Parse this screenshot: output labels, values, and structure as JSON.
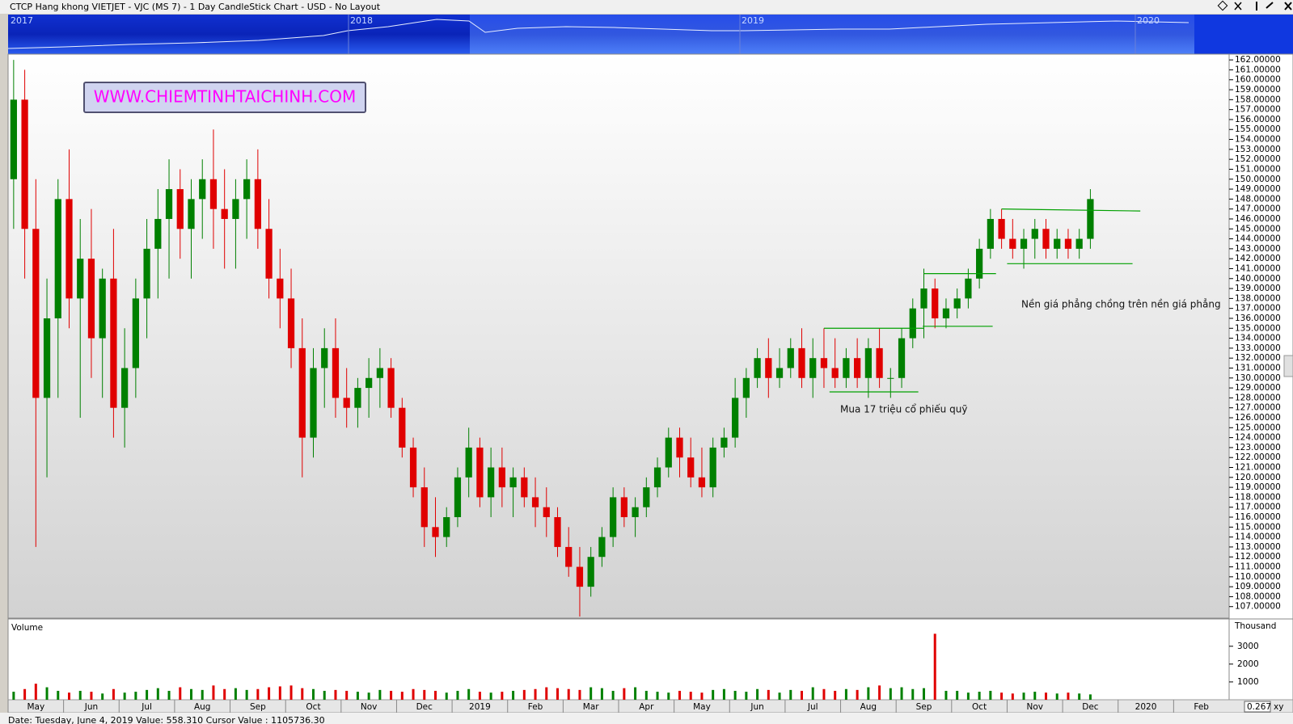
{
  "chart_data": {
    "type": "candlestick",
    "title": "CTCP Hang khong VIETJET - VJC (MS 7) - 1 Day CandleStick Chart - USD - No Layout",
    "navigator_labels": [
      "2017",
      "2018",
      "2019",
      "2020"
    ],
    "watermark": "WWW.CHIEMTINHTAICHINH.COM",
    "categories": [
      null,
      null,
      "May",
      null,
      null,
      null,
      null,
      "Jun",
      null,
      null,
      null,
      null,
      "Jul",
      null,
      null,
      null,
      null,
      "Aug",
      null,
      null,
      null,
      null,
      "Sep",
      null,
      null,
      null,
      null,
      "Oct",
      null,
      null,
      null,
      null,
      "Nov",
      null,
      null,
      null,
      null,
      "Dec",
      null,
      null,
      null,
      null,
      "2019",
      null,
      null,
      null,
      null,
      "Feb",
      null,
      null,
      null,
      null,
      "Mar",
      null,
      null,
      null,
      null,
      "Apr",
      null,
      null,
      null,
      null,
      "May",
      null,
      null,
      null,
      null,
      "Jun",
      null,
      null,
      null,
      null,
      "Jul",
      null,
      null,
      null,
      null,
      "Aug",
      null,
      null,
      null,
      null,
      "Sep",
      null,
      null,
      null,
      null,
      "Oct",
      null,
      null,
      null,
      null,
      "Nov",
      null,
      null,
      null,
      null,
      "Dec",
      null,
      null,
      null,
      null,
      "2020",
      null,
      null,
      null,
      null,
      "Feb",
      null,
      null
    ],
    "ohlc": [
      [
        150,
        162,
        145,
        158
      ],
      [
        158,
        161,
        140,
        145
      ],
      [
        145,
        150,
        113,
        128
      ],
      [
        128,
        140,
        120,
        136
      ],
      [
        136,
        150,
        128,
        148
      ],
      [
        148,
        153,
        135,
        138
      ],
      [
        138,
        146,
        126,
        142
      ],
      [
        142,
        147,
        130,
        134
      ],
      [
        134,
        141,
        128,
        140
      ],
      [
        140,
        145,
        124,
        127
      ],
      [
        127,
        135,
        123,
        131
      ],
      [
        131,
        140,
        128,
        138
      ],
      [
        138,
        146,
        134,
        143
      ],
      [
        143,
        149,
        138,
        146
      ],
      [
        146,
        152,
        140,
        149
      ],
      [
        149,
        151,
        142,
        145
      ],
      [
        145,
        150,
        140,
        148
      ],
      [
        148,
        152,
        144,
        150
      ],
      [
        150,
        155,
        143,
        147
      ],
      [
        147,
        151,
        141,
        146
      ],
      [
        146,
        150,
        141,
        148
      ],
      [
        148,
        152,
        144,
        150
      ],
      [
        150,
        153,
        143,
        145
      ],
      [
        145,
        148,
        138,
        140
      ],
      [
        140,
        143,
        135,
        138
      ],
      [
        138,
        141,
        131,
        133
      ],
      [
        133,
        136,
        120,
        124
      ],
      [
        124,
        133,
        122,
        131
      ],
      [
        131,
        135,
        127,
        133
      ],
      [
        133,
        136,
        126,
        128
      ],
      [
        128,
        131,
        125,
        127
      ],
      [
        127,
        130,
        125,
        129
      ],
      [
        129,
        132,
        126,
        130
      ],
      [
        130,
        133,
        127,
        131
      ],
      [
        131,
        132,
        126,
        127
      ],
      [
        127,
        128,
        122,
        123
      ],
      [
        123,
        124,
        118,
        119
      ],
      [
        119,
        121,
        113,
        115
      ],
      [
        115,
        118,
        112,
        114
      ],
      [
        114,
        117,
        113,
        116
      ],
      [
        116,
        121,
        115,
        120
      ],
      [
        120,
        125,
        118,
        123
      ],
      [
        123,
        124,
        117,
        118
      ],
      [
        118,
        123,
        116,
        121
      ],
      [
        121,
        123,
        117,
        119
      ],
      [
        119,
        121,
        116,
        120
      ],
      [
        120,
        121,
        117,
        118
      ],
      [
        118,
        120,
        115,
        117
      ],
      [
        117,
        119,
        114,
        116
      ],
      [
        116,
        117,
        112,
        113
      ],
      [
        113,
        115,
        110,
        111
      ],
      [
        111,
        113,
        106,
        109
      ],
      [
        109,
        113,
        108,
        112
      ],
      [
        112,
        115,
        111,
        114
      ],
      [
        114,
        119,
        113,
        118
      ],
      [
        118,
        119,
        115,
        116
      ],
      [
        116,
        118,
        114,
        117
      ],
      [
        117,
        120,
        116,
        119
      ],
      [
        119,
        122,
        118,
        121
      ],
      [
        121,
        125,
        120,
        124
      ],
      [
        124,
        125,
        120,
        122
      ],
      [
        122,
        124,
        119,
        120
      ],
      [
        120,
        123,
        118,
        119
      ],
      [
        119,
        124,
        118,
        123
      ],
      [
        123,
        125,
        122,
        124
      ],
      [
        124,
        130,
        123,
        128
      ],
      [
        128,
        131,
        126,
        130
      ],
      [
        130,
        133,
        129,
        132
      ],
      [
        132,
        134,
        128,
        130
      ],
      [
        130,
        133,
        129,
        131
      ],
      [
        131,
        134,
        130,
        133
      ],
      [
        133,
        135,
        129,
        130
      ],
      [
        130,
        134,
        128,
        132
      ],
      [
        132,
        135,
        129,
        131
      ],
      [
        131,
        134,
        129,
        130
      ],
      [
        130,
        133,
        129,
        132
      ],
      [
        132,
        134,
        129,
        130
      ],
      [
        130,
        134,
        128,
        133
      ],
      [
        133,
        135,
        129,
        130
      ],
      [
        130,
        131,
        128,
        130
      ],
      [
        130,
        135,
        129,
        134
      ],
      [
        134,
        138,
        133,
        137
      ],
      [
        137,
        141,
        134,
        139
      ],
      [
        139,
        140,
        135,
        136
      ],
      [
        136,
        138,
        135,
        137
      ],
      [
        137,
        139,
        136,
        138
      ],
      [
        138,
        141,
        137,
        140
      ],
      [
        140,
        144,
        139,
        143
      ],
      [
        143,
        147,
        142,
        146
      ],
      [
        146,
        147,
        143,
        144
      ],
      [
        144,
        146,
        142,
        143
      ],
      [
        143,
        145,
        141,
        144
      ],
      [
        144,
        146,
        142,
        145
      ],
      [
        145,
        146,
        142,
        143
      ],
      [
        143,
        145,
        142,
        144
      ],
      [
        144,
        145,
        142,
        143
      ],
      [
        143,
        145,
        142,
        144
      ],
      [
        144,
        149,
        143,
        148
      ],
      null,
      null,
      null,
      null,
      null,
      null,
      null,
      null,
      null,
      null,
      null,
      null
    ],
    "up_color": "#008000",
    "down_color": "#e00000",
    "ylim": [
      105.84,
      162.58
    ],
    "yticks": [
      {
        "value": 107,
        "label": "107.00000"
      },
      {
        "value": 108,
        "label": "108.00000"
      },
      {
        "value": 109,
        "label": "109.00000"
      },
      {
        "value": 110,
        "label": "110.00000"
      },
      {
        "value": 111,
        "label": "111.00000"
      },
      {
        "value": 112,
        "label": "112.00000"
      },
      {
        "value": 113,
        "label": "113.00000"
      },
      {
        "value": 114,
        "label": "114.00000"
      },
      {
        "value": 115,
        "label": "115.00000"
      },
      {
        "value": 116,
        "label": "116.00000"
      },
      {
        "value": 117,
        "label": "117.00000"
      },
      {
        "value": 118,
        "label": "118.00000"
      },
      {
        "value": 119,
        "label": "119.00000"
      },
      {
        "value": 120,
        "label": "120.00000"
      },
      {
        "value": 121,
        "label": "121.00000"
      },
      {
        "value": 122,
        "label": "122.00000"
      },
      {
        "value": 123,
        "label": "123.00000"
      },
      {
        "value": 124,
        "label": "124.00000"
      },
      {
        "value": 125,
        "label": "125.00000"
      },
      {
        "value": 126,
        "label": "126.00000"
      },
      {
        "value": 127,
        "label": "127.00000"
      },
      {
        "value": 128,
        "label": "128.00000"
      },
      {
        "value": 129,
        "label": "129.00000"
      },
      {
        "value": 130,
        "label": "130.00000"
      },
      {
        "value": 131,
        "label": "131.00000"
      },
      {
        "value": 132,
        "label": "132.00000"
      },
      {
        "value": 133,
        "label": "133.00000"
      },
      {
        "value": 134,
        "label": "134.00000"
      },
      {
        "value": 135,
        "label": "135.00000"
      },
      {
        "value": 136,
        "label": "136.00000"
      },
      {
        "value": 137,
        "label": "137.00000"
      },
      {
        "value": 138,
        "label": "138.00000"
      },
      {
        "value": 139,
        "label": "139.00000"
      },
      {
        "value": 140,
        "label": "140.00000"
      },
      {
        "value": 141,
        "label": "141.00000"
      },
      {
        "value": 142,
        "label": "142.00000"
      },
      {
        "value": 143,
        "label": "143.00000"
      },
      {
        "value": 144,
        "label": "144.00000"
      },
      {
        "value": 145,
        "label": "145.00000"
      },
      {
        "value": 146,
        "label": "146.00000"
      },
      {
        "value": 147,
        "label": "147.00000"
      },
      {
        "value": 148,
        "label": "148.00000"
      },
      {
        "value": 149,
        "label": "149.00000"
      },
      {
        "value": 150,
        "label": "150.00000"
      },
      {
        "value": 151,
        "label": "151.00000"
      },
      {
        "value": 152,
        "label": "152.00000"
      },
      {
        "value": 153,
        "label": "153.00000"
      },
      {
        "value": 154,
        "label": "154.00000"
      },
      {
        "value": 155,
        "label": "155.00000"
      },
      {
        "value": 156,
        "label": "156.00000"
      },
      {
        "value": 157,
        "label": "157.00000"
      },
      {
        "value": 158,
        "label": "158.00000"
      },
      {
        "value": 159,
        "label": "159.00000"
      },
      {
        "value": 160,
        "label": "160.00000"
      },
      {
        "value": 161,
        "label": "161.00000"
      },
      {
        "value": 162,
        "label": "162.00000"
      }
    ],
    "trendlines": [
      {
        "x": [
          73,
          82
        ],
        "y": [
          135,
          135
        ]
      },
      {
        "x": [
          73.5,
          81.5
        ],
        "y": [
          128.6,
          128.6
        ]
      },
      {
        "x": [
          82,
          88.5
        ],
        "y": [
          140.5,
          140.5
        ]
      },
      {
        "x": [
          81.9,
          88.2
        ],
        "y": [
          135.2,
          135.2
        ]
      },
      {
        "x": [
          89,
          101.5
        ],
        "y": [
          147,
          146.8
        ]
      },
      {
        "x": [
          89.5,
          100.8
        ],
        "y": [
          141.5,
          141.5
        ]
      }
    ],
    "trendline_color": "#00a000",
    "annotations": [
      "Mua 17 triệu cổ phiếu quỹ",
      "Nền giá phẳng chồng trên nền giá phẳng"
    ],
    "volume": {
      "label": "Volume",
      "unit": "Thousand",
      "values": [
        450,
        600,
        900,
        700,
        500,
        400,
        500,
        450,
        350,
        600,
        400,
        450,
        550,
        650,
        500,
        700,
        600,
        550,
        800,
        600,
        650,
        550,
        600,
        700,
        750,
        800,
        650,
        600,
        500,
        550,
        500,
        450,
        400,
        550,
        500,
        450,
        600,
        550,
        500,
        400,
        500,
        600,
        450,
        400,
        450,
        500,
        550,
        600,
        700,
        650,
        600,
        550,
        700,
        650,
        500,
        650,
        700,
        500,
        450,
        400,
        500,
        450,
        400,
        550,
        600,
        500,
        450,
        600,
        550,
        400,
        550,
        500,
        700,
        600,
        500,
        600,
        550,
        700,
        800,
        650,
        700,
        600,
        650,
        3700,
        500,
        500,
        400,
        450,
        500,
        400,
        350,
        400,
        450,
        400,
        350,
        400,
        350,
        300,
        null,
        null,
        null,
        null,
        null,
        null,
        null,
        null,
        null,
        null,
        null,
        null
      ],
      "ylim": [
        0,
        4530
      ],
      "yticks": [
        1000,
        2000,
        3000
      ]
    }
  },
  "status": {
    "text": "Date: Tuesday, June 4, 2019 Value: 558.310 Cursor Value : 1105736.30",
    "zoom": "0.267",
    "mode": "xy"
  }
}
